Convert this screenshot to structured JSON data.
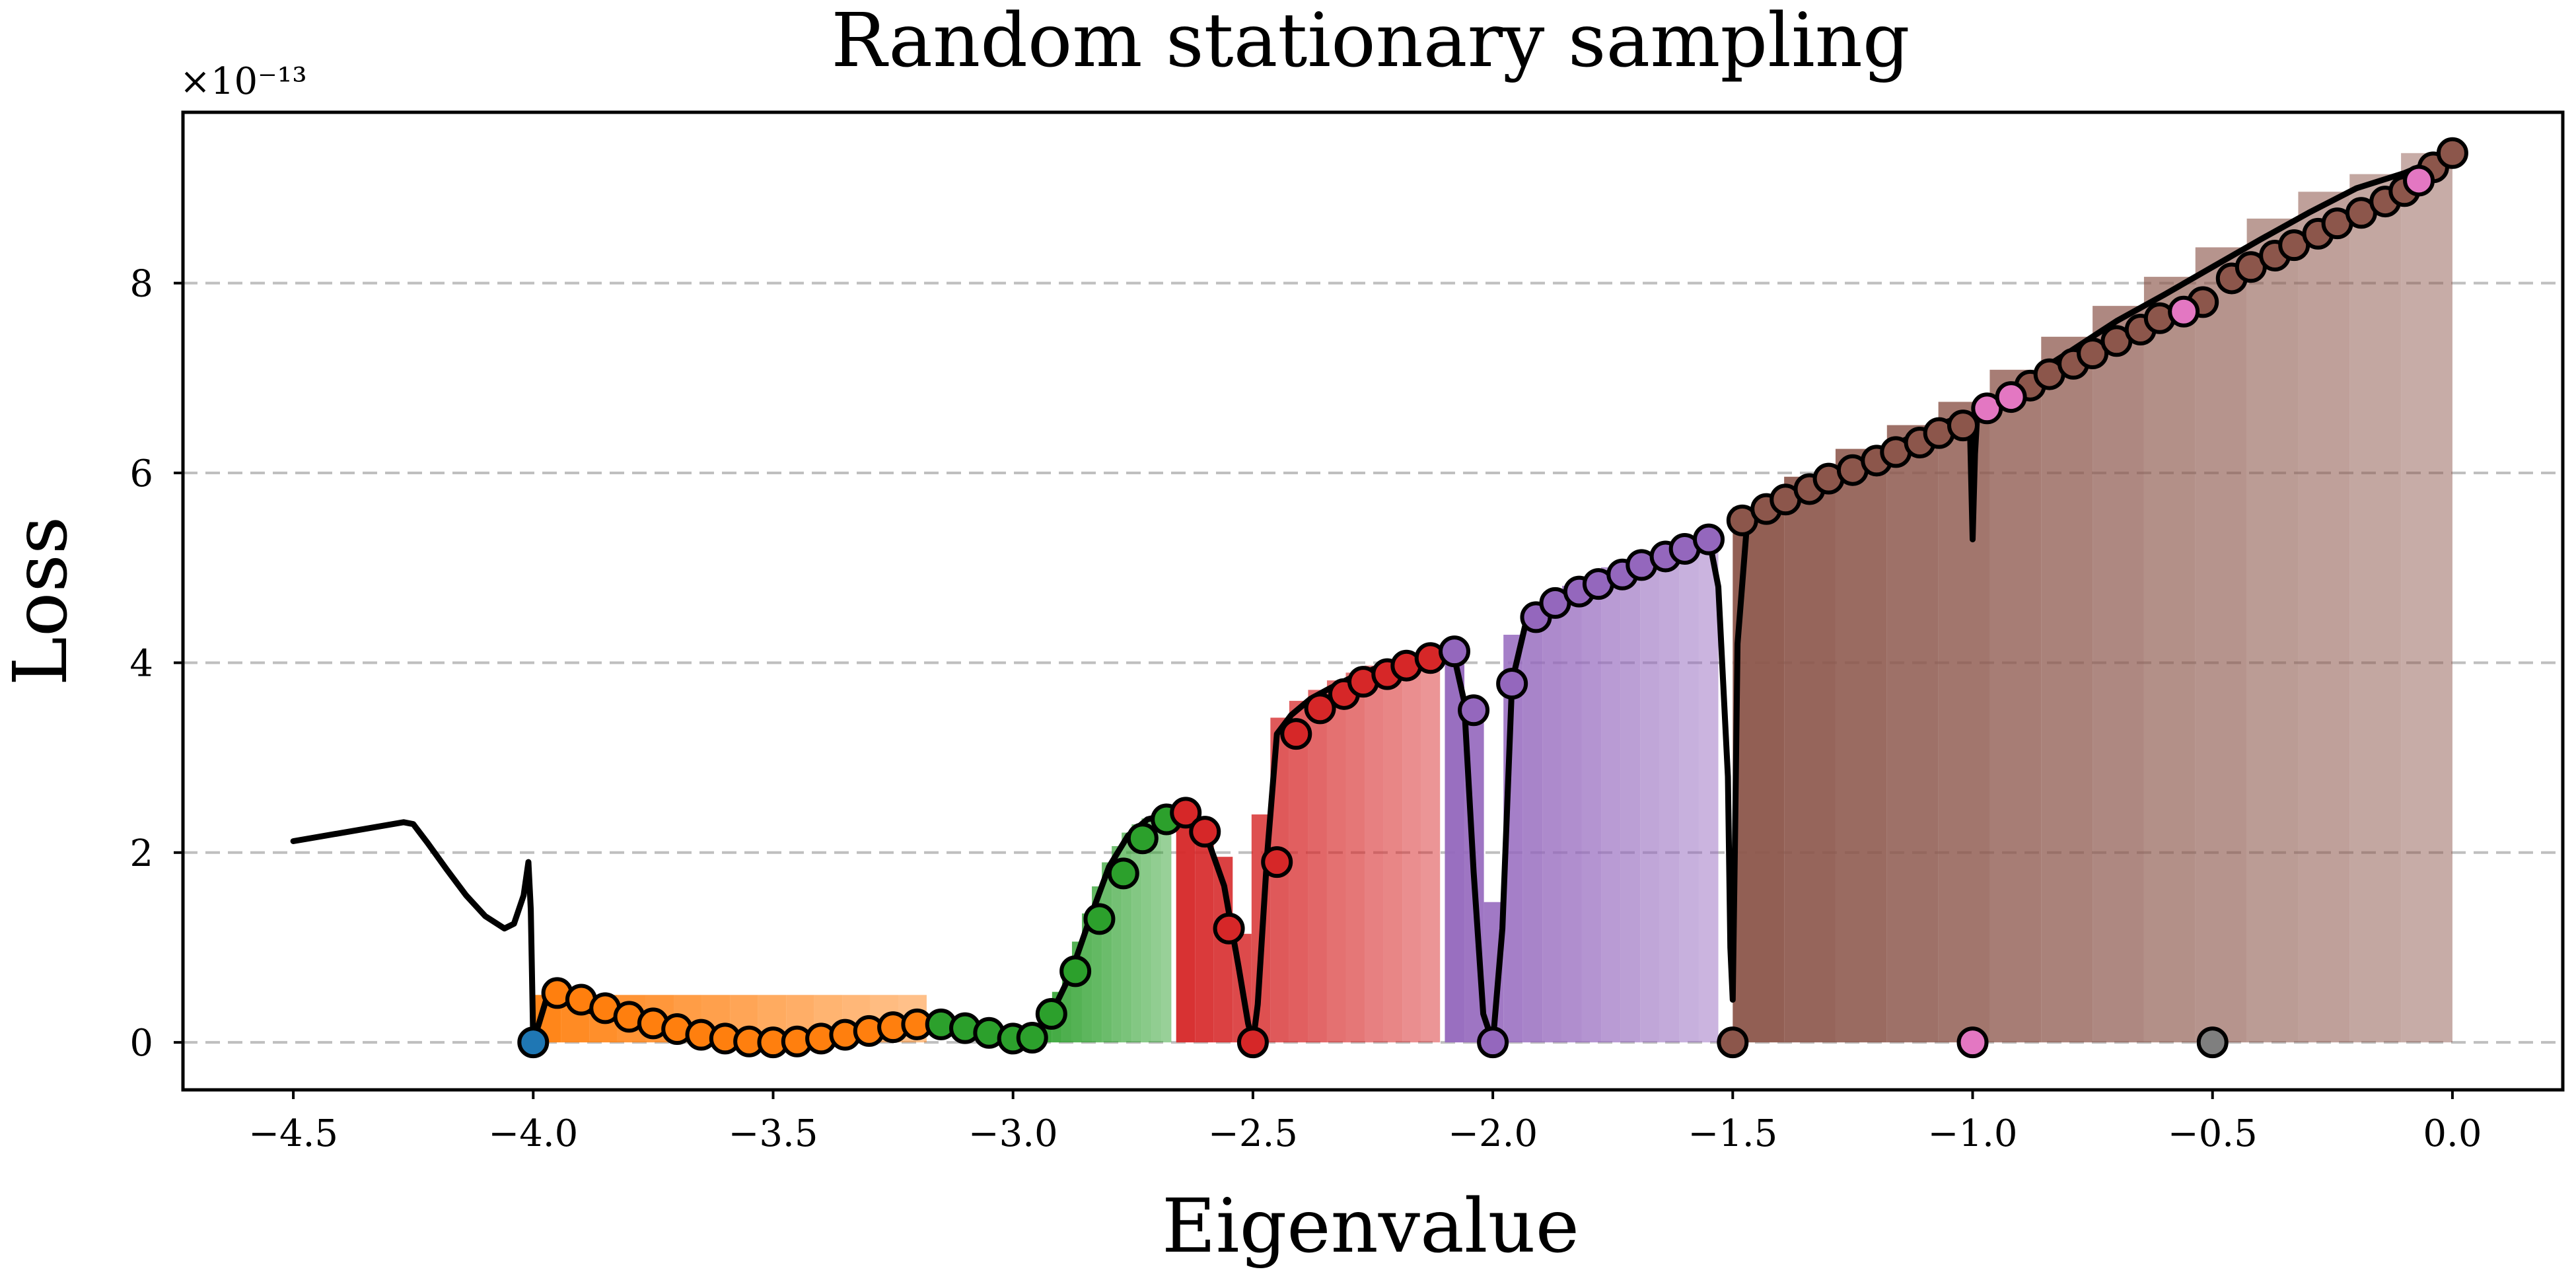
{
  "chart_data": {
    "type": "scatter",
    "title": "Random stationary sampling",
    "xlabel": "Eigenvalue",
    "ylabel": "Loss",
    "y_scale_note": "×10⁻¹³",
    "xlim": [
      -4.73,
      0.23
    ],
    "ylim": [
      -0.5,
      9.8
    ],
    "grid": "y-dashed",
    "xticks": [
      -4.5,
      -4.0,
      -3.5,
      -3.0,
      -2.5,
      -2.0,
      -1.5,
      -1.0,
      -0.5,
      0.0
    ],
    "xtick_labels": [
      "−4.5",
      "−4.0",
      "−3.5",
      "−3.0",
      "−2.5",
      "−2.0",
      "−1.5",
      "−1.0",
      "−0.5",
      "0.0"
    ],
    "yticks": [
      0,
      2,
      4,
      6,
      8
    ],
    "ytick_labels": [
      "0",
      "2",
      "4",
      "6",
      "8"
    ],
    "colors": {
      "blue": "#1f77b4",
      "orange": "#ff7f0e",
      "green": "#2ca02c",
      "red": "#d62728",
      "purple": "#9467bd",
      "brown": "#8c564b",
      "pink": "#e377c2",
      "gray": "#7f7f7f"
    },
    "curve": {
      "x": [
        -4.5,
        -4.27,
        -4.25,
        -4.22,
        -4.18,
        -4.14,
        -4.1,
        -4.06,
        -4.04,
        -4.02,
        -4.01,
        -4.005,
        -4.0,
        -3.97,
        -3.9,
        -3.8,
        -3.7,
        -3.6,
        -3.5,
        -3.4,
        -3.3,
        -3.2,
        -3.15,
        -3.1,
        -3.05,
        -3.0,
        -2.96,
        -2.92,
        -2.88,
        -2.84,
        -2.8,
        -2.76,
        -2.72,
        -2.68,
        -2.64,
        -2.6,
        -2.56,
        -2.53,
        -2.51,
        -2.5,
        -2.49,
        -2.47,
        -2.45,
        -2.42,
        -2.38,
        -2.34,
        -2.3,
        -2.25,
        -2.2,
        -2.15,
        -2.1,
        -2.08,
        -2.06,
        -2.04,
        -2.02,
        -2.0,
        -1.98,
        -1.96,
        -1.93,
        -1.9,
        -1.85,
        -1.8,
        -1.75,
        -1.7,
        -1.65,
        -1.6,
        -1.55,
        -1.53,
        -1.51,
        -1.505,
        -1.5,
        -1.495,
        -1.49,
        -1.47,
        -1.4,
        -1.3,
        -1.2,
        -1.1,
        -1.01,
        -1.005,
        -1.0,
        -0.995,
        -0.99,
        -0.98,
        -0.9,
        -0.8,
        -0.7,
        -0.6,
        -0.5,
        -0.4,
        -0.3,
        -0.2,
        -0.1,
        0.0
      ],
      "y": [
        2.12,
        2.32,
        2.3,
        2.1,
        1.82,
        1.55,
        1.33,
        1.2,
        1.25,
        1.55,
        1.9,
        1.4,
        0.0,
        0.5,
        0.36,
        0.2,
        0.08,
        0.02,
        0.0,
        0.03,
        0.1,
        0.2,
        0.22,
        0.15,
        0.06,
        0.0,
        0.05,
        0.3,
        0.72,
        1.3,
        1.85,
        2.18,
        2.35,
        2.4,
        2.4,
        2.22,
        1.65,
        0.8,
        0.2,
        0.0,
        0.4,
        2.0,
        3.25,
        3.45,
        3.62,
        3.73,
        3.83,
        3.93,
        4.02,
        4.08,
        4.12,
        4.05,
        3.6,
        1.8,
        0.3,
        0.0,
        1.2,
        3.8,
        4.45,
        4.55,
        4.72,
        4.85,
        4.97,
        5.08,
        5.18,
        5.27,
        5.32,
        4.8,
        2.8,
        1.0,
        0.45,
        2.2,
        4.2,
        5.48,
        5.62,
        5.92,
        6.2,
        6.45,
        6.62,
        6.35,
        5.3,
        6.2,
        6.65,
        6.7,
        6.95,
        7.27,
        7.6,
        7.88,
        8.17,
        8.46,
        8.74,
        9.0,
        9.16,
        9.37
      ]
    },
    "series": [
      {
        "name": "",
        "color": "#1f77b4",
        "points": [
          [
            -4.0,
            0.0
          ]
        ]
      },
      {
        "name": "",
        "color": "#ff7f0e",
        "points": [
          [
            -3.95,
            0.52
          ],
          [
            -3.9,
            0.45
          ],
          [
            -3.85,
            0.36
          ],
          [
            -3.8,
            0.27
          ],
          [
            -3.75,
            0.2
          ],
          [
            -3.7,
            0.14
          ],
          [
            -3.65,
            0.08
          ],
          [
            -3.6,
            0.04
          ],
          [
            -3.55,
            0.01
          ],
          [
            -3.5,
            0.0
          ],
          [
            -3.45,
            0.01
          ],
          [
            -3.4,
            0.04
          ],
          [
            -3.35,
            0.08
          ],
          [
            -3.3,
            0.12
          ],
          [
            -3.25,
            0.16
          ],
          [
            -3.2,
            0.19
          ]
        ]
      },
      {
        "name": "",
        "color": "#2ca02c",
        "points": [
          [
            -3.15,
            0.19
          ],
          [
            -3.1,
            0.15
          ],
          [
            -3.05,
            0.1
          ],
          [
            -3.0,
            0.04
          ],
          [
            -2.96,
            0.05
          ],
          [
            -2.92,
            0.3
          ],
          [
            -2.87,
            0.75
          ],
          [
            -2.82,
            1.3
          ],
          [
            -2.77,
            1.78
          ],
          [
            -2.73,
            2.15
          ],
          [
            -2.68,
            2.35
          ]
        ]
      },
      {
        "name": "",
        "color": "#d62728",
        "points": [
          [
            -2.64,
            2.42
          ],
          [
            -2.6,
            2.22
          ],
          [
            -2.55,
            1.2
          ],
          [
            -2.5,
            0.0
          ],
          [
            -2.45,
            1.9
          ],
          [
            -2.41,
            3.25
          ],
          [
            -2.36,
            3.52
          ],
          [
            -2.31,
            3.67
          ],
          [
            -2.27,
            3.8
          ],
          [
            -2.22,
            3.88
          ],
          [
            -2.18,
            3.97
          ],
          [
            -2.13,
            4.05
          ]
        ]
      },
      {
        "name": "",
        "color": "#9467bd",
        "points": [
          [
            -2.08,
            4.12
          ],
          [
            -2.04,
            3.5
          ],
          [
            -2.0,
            0.0
          ],
          [
            -1.96,
            3.78
          ],
          [
            -1.91,
            4.48
          ],
          [
            -1.87,
            4.63
          ],
          [
            -1.82,
            4.75
          ],
          [
            -1.78,
            4.83
          ],
          [
            -1.73,
            4.93
          ],
          [
            -1.69,
            5.03
          ],
          [
            -1.64,
            5.12
          ],
          [
            -1.6,
            5.2
          ],
          [
            -1.55,
            5.3
          ]
        ]
      },
      {
        "name": "",
        "color": "#8c564b",
        "points": [
          [
            -1.5,
            0.0
          ],
          [
            -1.48,
            5.5
          ],
          [
            -1.43,
            5.62
          ],
          [
            -1.39,
            5.72
          ],
          [
            -1.34,
            5.83
          ],
          [
            -1.3,
            5.94
          ],
          [
            -1.25,
            6.03
          ],
          [
            -1.2,
            6.13
          ],
          [
            -1.16,
            6.22
          ],
          [
            -1.11,
            6.32
          ],
          [
            -1.07,
            6.42
          ],
          [
            -1.02,
            6.5
          ],
          [
            -0.88,
            6.92
          ],
          [
            -0.84,
            7.04
          ],
          [
            -0.79,
            7.15
          ],
          [
            -0.75,
            7.26
          ],
          [
            -0.7,
            7.39
          ],
          [
            -0.65,
            7.51
          ],
          [
            -0.61,
            7.63
          ],
          [
            -0.52,
            7.8
          ],
          [
            -0.46,
            8.05
          ],
          [
            -0.42,
            8.17
          ],
          [
            -0.37,
            8.29
          ],
          [
            -0.33,
            8.4
          ],
          [
            -0.28,
            8.52
          ],
          [
            -0.24,
            8.63
          ],
          [
            -0.19,
            8.74
          ],
          [
            -0.14,
            8.86
          ],
          [
            -0.1,
            8.97
          ],
          [
            -0.04,
            9.22
          ],
          [
            0.0,
            9.37
          ]
        ]
      },
      {
        "name": "",
        "color": "#e377c2",
        "points": [
          [
            -1.0,
            0.0
          ],
          [
            -0.97,
            6.68
          ],
          [
            -0.92,
            6.8
          ],
          [
            -0.56,
            7.7
          ],
          [
            -0.07,
            9.08
          ]
        ]
      },
      {
        "name": "",
        "color": "#7f7f7f",
        "points": [
          [
            -0.5,
            0.0
          ]
        ]
      }
    ],
    "fill_regions": [
      {
        "color": "#ff7f0e",
        "x0": -4.0,
        "x1": -3.18,
        "top": 0.5
      },
      {
        "color": "#2ca02c",
        "x0": -2.96,
        "x1": -2.67,
        "top": "curve"
      },
      {
        "color": "#d62728",
        "x0": -2.66,
        "x1": -2.11,
        "top": "curve"
      },
      {
        "color": "#9467bd",
        "x0": -2.1,
        "x1": -1.53,
        "top": "curve"
      },
      {
        "color": "#8c564b",
        "x0": -1.5,
        "x1": 0.0,
        "top": "curve"
      }
    ]
  }
}
